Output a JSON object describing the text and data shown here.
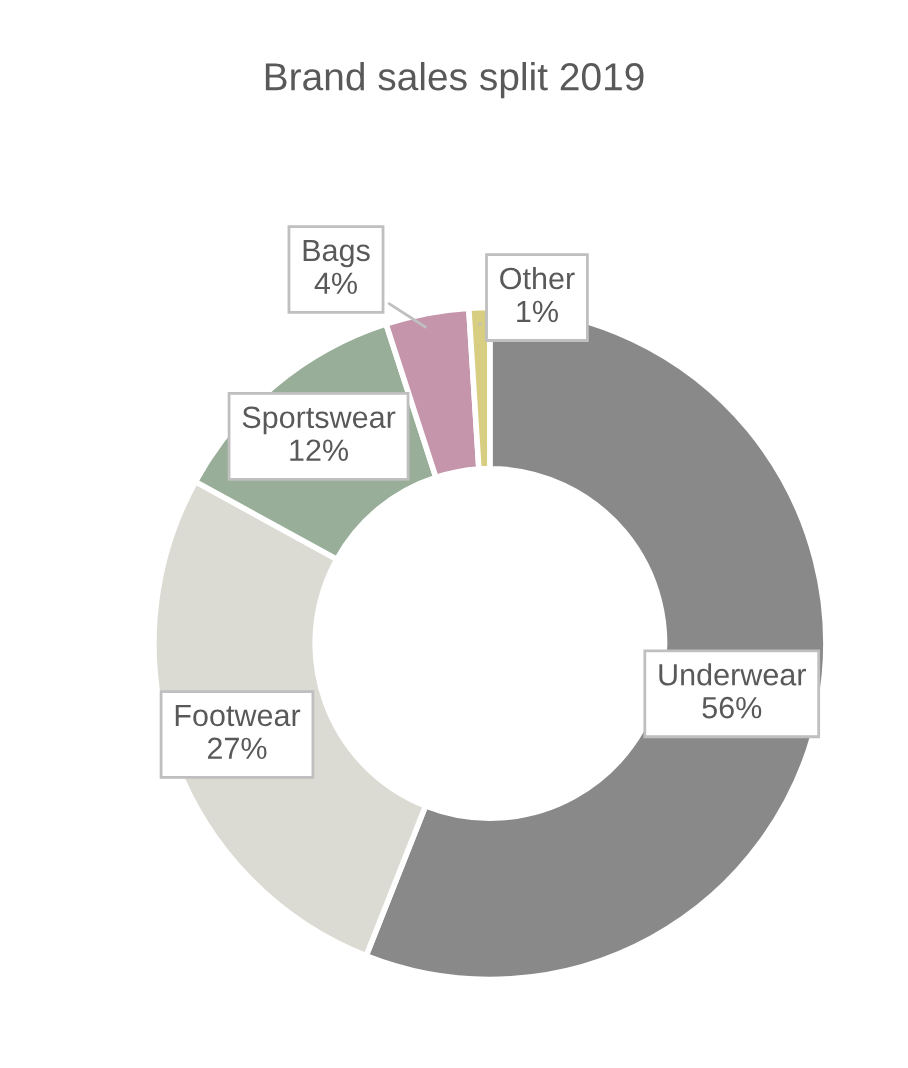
{
  "chart_data": {
    "type": "donut",
    "title": "Brand sales split 2019",
    "categories": [
      "Underwear",
      "Footwear",
      "Sportswear",
      "Bags",
      "Other"
    ],
    "values": [
      56,
      27,
      12,
      4,
      1
    ],
    "colors": [
      "#898989",
      "#dcdbd3",
      "#98ae98",
      "#c595ab",
      "#d8ce82"
    ],
    "value_labels": [
      "56%",
      "27%",
      "12%",
      "4%",
      "1%"
    ],
    "legend": false
  }
}
